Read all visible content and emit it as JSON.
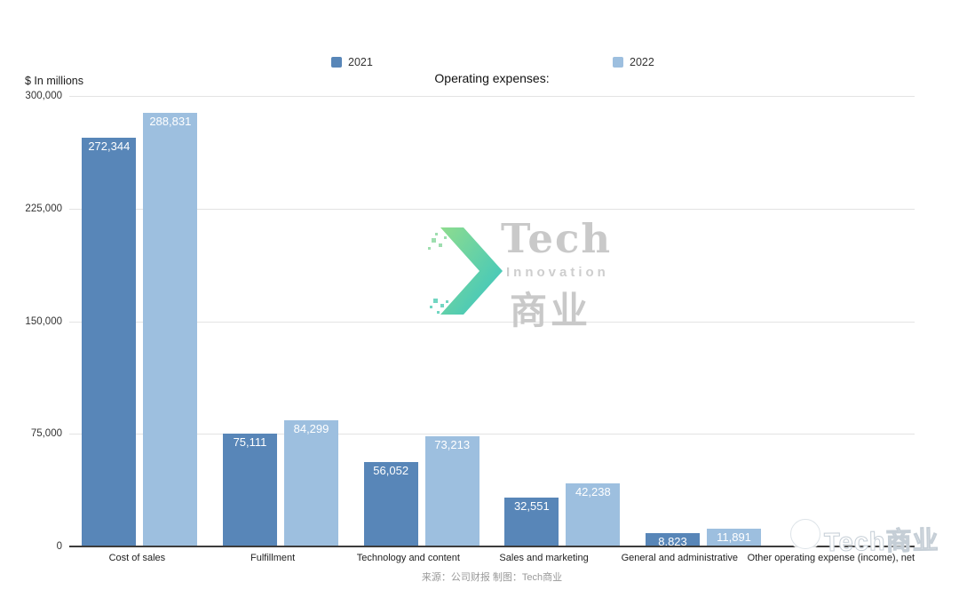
{
  "header": {
    "title": "Operating expenses:",
    "units_label": "$ In millions"
  },
  "legend": [
    {
      "label": "2021"
    },
    {
      "label": "2022"
    }
  ],
  "chart_data": {
    "type": "bar",
    "title": "Operating expenses:",
    "ylabel": "$ In millions",
    "xlabel": "",
    "ylim": [
      0,
      300000
    ],
    "grid": true,
    "legend_position": "top",
    "yticks": [
      0,
      75000,
      150000,
      225000,
      300000
    ],
    "ytick_labels": [
      "0",
      "75,000",
      "150,000",
      "225,000",
      "300,000"
    ],
    "categories": [
      "Cost of sales",
      "Fulfillment",
      "Technology and content",
      "Sales and marketing",
      "General and administrative",
      "Other operating expense (income), net"
    ],
    "series": [
      {
        "name": "2021",
        "color": "#5886b8",
        "values": [
          272344,
          75111,
          56052,
          32551,
          8823,
          0
        ],
        "labels": [
          "272,344",
          "75,111",
          "56,052",
          "32,551",
          "8,823",
          ""
        ]
      },
      {
        "name": "2022",
        "color": "#9dbfdf",
        "values": [
          288831,
          84299,
          73213,
          42238,
          11891,
          0
        ],
        "labels": [
          "288,831",
          "84,299",
          "73,213",
          "42,238",
          "11,891",
          ""
        ]
      }
    ]
  },
  "watermarks": {
    "center": {
      "line1": "Tech",
      "line2": "Innovation",
      "line3": "商业"
    },
    "corner": {
      "text": "Tech商业"
    }
  },
  "footer": {
    "caption": "来源：公司财报 制图：Tech商业"
  },
  "colors": {
    "series_2021": "#5886b8",
    "series_2022": "#9dbfdf",
    "gridline": "#e3e3e3",
    "axis": "#3c3c3c",
    "watermark_gray": "#c9c9c9",
    "arrow_gradient_start": "#8edc8e",
    "arrow_gradient_end": "#35c4c4"
  }
}
